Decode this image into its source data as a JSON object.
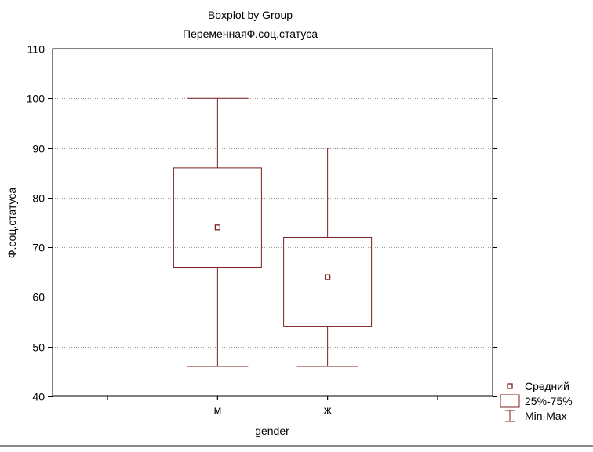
{
  "chart_data": {
    "type": "boxplot",
    "title": "Boxplot by Group",
    "subtitle": "ПеременнаяФ.соц.статуса",
    "xlabel": "gender",
    "ylabel": "Ф.соц.статуса",
    "ylim": [
      40,
      110
    ],
    "yticks": [
      40,
      50,
      60,
      70,
      80,
      90,
      100,
      110
    ],
    "grid": true,
    "categories": [
      "м",
      "ж"
    ],
    "groups": [
      {
        "category": "м",
        "mean": 74,
        "q1": 66,
        "q3": 86,
        "min": 46,
        "max": 100
      },
      {
        "category": "ж",
        "mean": 64,
        "q1": 54,
        "q3": 72,
        "min": 46,
        "max": 90
      }
    ],
    "legend": {
      "placement": "bottom-right",
      "entries": [
        {
          "marker": "square",
          "label": "Средний"
        },
        {
          "marker": "box",
          "label": "25%-75%"
        },
        {
          "marker": "whisker",
          "label": "Min-Max"
        }
      ]
    },
    "colors": {
      "series": "#7b1f1f",
      "axis": "#000000",
      "grid": "#9a9a9a",
      "background": "#ffffff"
    }
  }
}
